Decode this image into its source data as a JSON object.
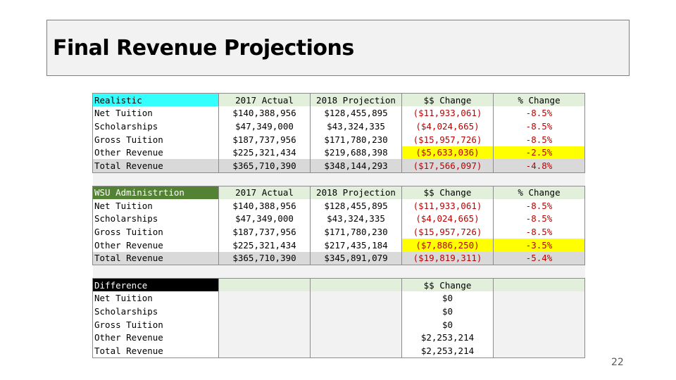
{
  "title": "Final Revenue Projections",
  "page_number": "22",
  "colors": {
    "realistic_header": "#33ffff",
    "wsu_header": "#548235",
    "difference_header": "#000000",
    "negative_text": "#c00000",
    "highlight": "#ffff00",
    "column_header_fill": "#e2efda",
    "total_row_fill": "#d9d9d9"
  },
  "realistic": {
    "header": [
      "Realistic",
      "2017 Actual",
      "2018 Projection",
      "$$ Change",
      "% Change"
    ],
    "rows": [
      [
        "Net Tuition",
        "$140,388,956",
        "$128,455,895",
        "($11,933,061)",
        "-8.5%"
      ],
      [
        "Scholarships",
        "$47,349,000",
        "$43,324,335",
        "($4,024,665)",
        "-8.5%"
      ],
      [
        "Gross Tuition",
        "$187,737,956",
        "$171,780,230",
        "($15,957,726)",
        "-8.5%"
      ],
      [
        "Other Revenue",
        "$225,321,434",
        "$219,688,398",
        "($5,633,036)",
        "-2.5%"
      ],
      [
        "Total Revenue",
        "$365,710,390",
        "$348,144,293",
        "($17,566,097)",
        "-4.8%"
      ]
    ]
  },
  "wsu": {
    "header": [
      "WSU Administrtion",
      "2017 Actual",
      "2018 Projection",
      "$$ Change",
      "% Change"
    ],
    "rows": [
      [
        "Net Tuition",
        "$140,388,956",
        "$128,455,895",
        "($11,933,061)",
        "-8.5%"
      ],
      [
        "Scholarships",
        "$47,349,000",
        "$43,324,335",
        "($4,024,665)",
        "-8.5%"
      ],
      [
        "Gross Tuition",
        "$187,737,956",
        "$171,780,230",
        "($15,957,726)",
        "-8.5%"
      ],
      [
        "Other Revenue",
        "$225,321,434",
        "$217,435,184",
        "($7,886,250)",
        "-3.5%"
      ],
      [
        "Total Revenue",
        "$365,710,390",
        "$345,891,079",
        "($19,819,311)",
        "-5.4%"
      ]
    ]
  },
  "difference": {
    "header": [
      "Difference",
      "",
      "",
      "$$ Change",
      ""
    ],
    "rows": [
      [
        "Net Tuition",
        "",
        "",
        "$0",
        ""
      ],
      [
        "Scholarships",
        "",
        "",
        "$0",
        ""
      ],
      [
        "Gross Tuition",
        "",
        "",
        "$0",
        ""
      ],
      [
        "Other Revenue",
        "",
        "",
        "$2,253,214",
        ""
      ],
      [
        "Total Revenue",
        "",
        "",
        "$2,253,214",
        ""
      ]
    ]
  }
}
